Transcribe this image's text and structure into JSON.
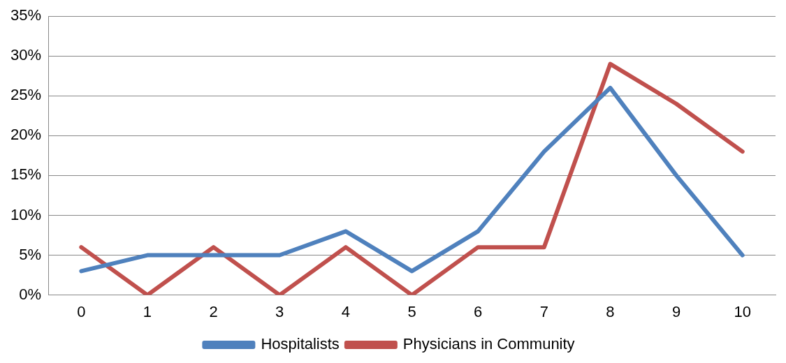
{
  "chart_data": {
    "type": "line",
    "categories": [
      "0",
      "1",
      "2",
      "3",
      "4",
      "5",
      "6",
      "7",
      "8",
      "9",
      "10"
    ],
    "series": [
      {
        "name": "Hospitalists",
        "color": "#4f81bd",
        "values": [
          3,
          5,
          5,
          5,
          8,
          3,
          8,
          18,
          26,
          15,
          5
        ]
      },
      {
        "name": "Physicians in Community",
        "color": "#c0504d",
        "values": [
          6,
          0,
          6,
          0,
          6,
          0,
          6,
          6,
          29,
          24,
          18
        ]
      }
    ],
    "ylim": [
      0,
      35
    ],
    "yticks": [
      {
        "value": 0,
        "label": "0%"
      },
      {
        "value": 5,
        "label": "5%"
      },
      {
        "value": 10,
        "label": "10%"
      },
      {
        "value": 15,
        "label": "15%"
      },
      {
        "value": 20,
        "label": "20%"
      },
      {
        "value": 25,
        "label": "25%"
      },
      {
        "value": 30,
        "label": "30%"
      },
      {
        "value": 35,
        "label": "35%"
      }
    ],
    "grid": "y",
    "legend": "bottom",
    "marker": "none",
    "line_style": "solid"
  }
}
